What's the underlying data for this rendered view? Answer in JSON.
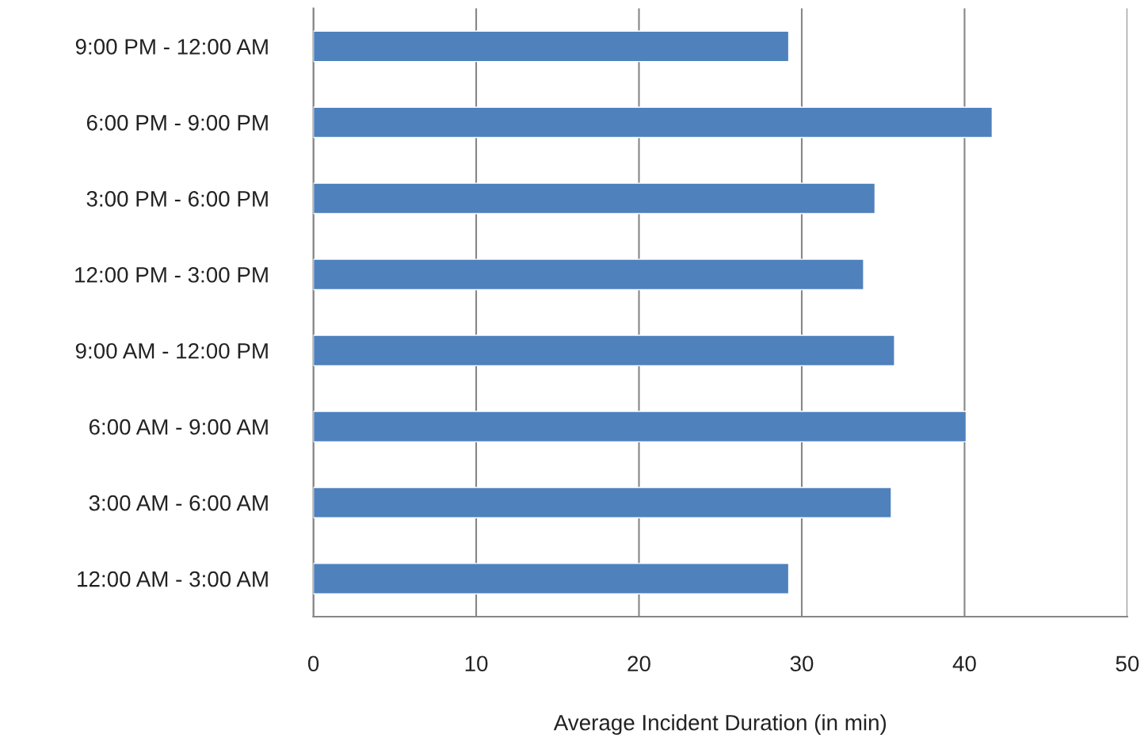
{
  "chart_data": {
    "type": "bar",
    "orientation": "horizontal",
    "xlabel": "Average Incident Duration (in min)",
    "categories": [
      "9:00 PM - 12:00 AM",
      "6:00 PM - 9:00 PM",
      "3:00 PM - 6:00 PM",
      "12:00 PM - 3:00 PM",
      "9:00 AM - 12:00 PM",
      "6:00 AM - 9:00 AM",
      "3:00 AM - 6:00 AM",
      "12:00 AM - 3:00 AM"
    ],
    "values": [
      29.2,
      41.7,
      34.5,
      33.8,
      35.7,
      40.1,
      35.5,
      29.2
    ],
    "color": "#4f81bd",
    "xlim": [
      0,
      50
    ],
    "xticks": [
      0,
      10,
      20,
      30,
      40,
      50
    ],
    "grid": "x",
    "legend": false
  }
}
